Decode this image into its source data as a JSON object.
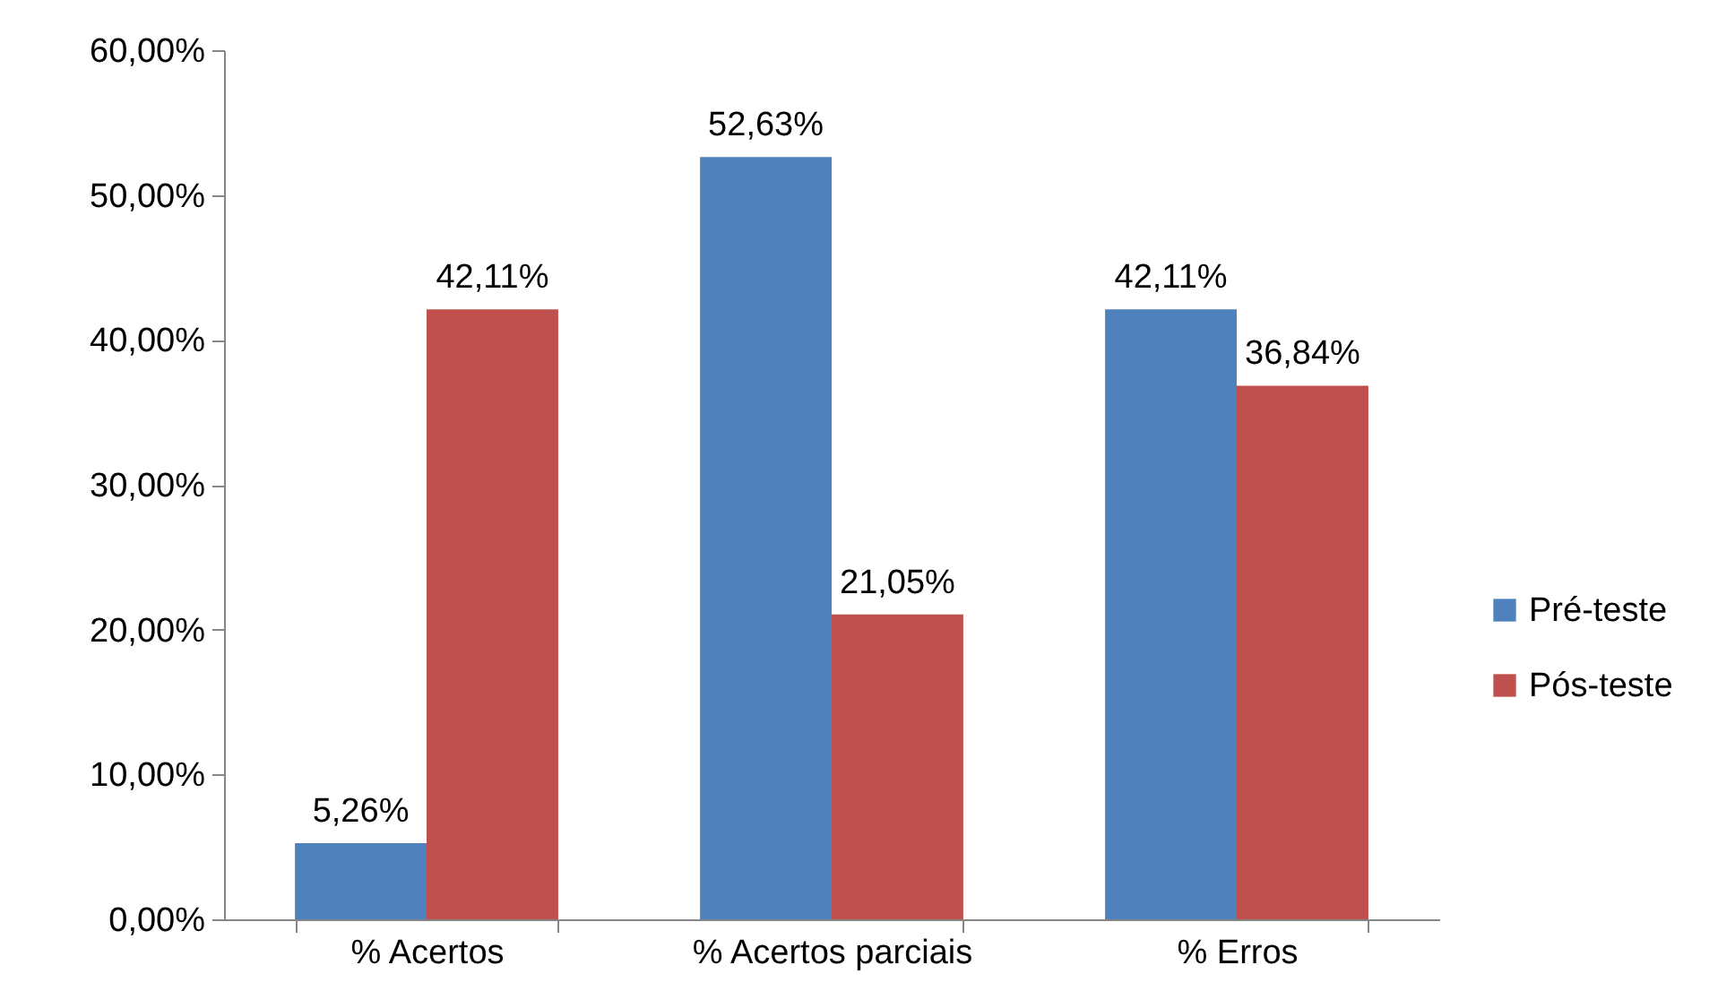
{
  "chart_data": {
    "type": "bar",
    "categories": [
      "% Acertos",
      "% Acertos parciais",
      "% Erros"
    ],
    "series": [
      {
        "name": "Pré-teste",
        "color": "#4f81bd",
        "values": [
          5.26,
          52.63,
          42.11
        ],
        "value_labels": [
          "5,26%",
          "52,63%",
          "42,11%"
        ]
      },
      {
        "name": "Pós-teste",
        "color": "#c0504d",
        "values": [
          42.11,
          21.05,
          36.84
        ],
        "value_labels": [
          "42,11%",
          "21,05%",
          "36,84%"
        ]
      }
    ],
    "ylim": [
      0,
      60
    ],
    "yticks": [
      {
        "value": 0,
        "label": "0,00%"
      },
      {
        "value": 10,
        "label": "10,00%"
      },
      {
        "value": 20,
        "label": "20,00%"
      },
      {
        "value": 30,
        "label": "30,00%"
      },
      {
        "value": 40,
        "label": "40,00%"
      },
      {
        "value": 50,
        "label": "50,00%"
      },
      {
        "value": 60,
        "label": "60,00%"
      }
    ],
    "grid": false,
    "legend": "right"
  }
}
